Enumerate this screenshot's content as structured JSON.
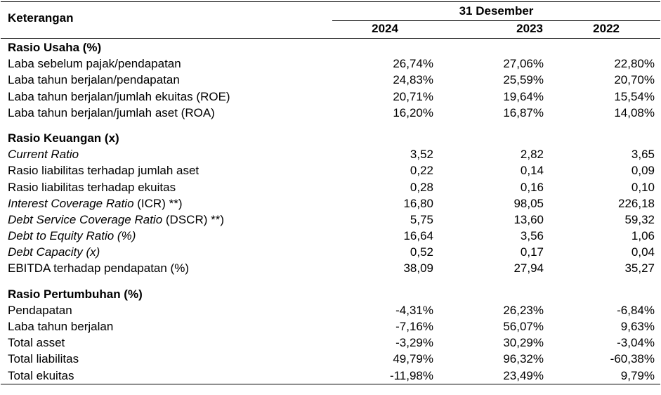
{
  "header": {
    "label": "Keterangan",
    "group": "31 Desember",
    "years": [
      "2024",
      "2023",
      "2022"
    ]
  },
  "sections": [
    {
      "title": "Rasio Usaha (%)",
      "rows": [
        {
          "label": "Laba sebelum pajak/pendapatan",
          "italic": "",
          "values": [
            "26,74%",
            "27,06%",
            "22,80%"
          ]
        },
        {
          "label": "Laba tahun berjalan/pendapatan",
          "italic": "",
          "values": [
            "24,83%",
            "25,59%",
            "20,70%"
          ]
        },
        {
          "label": "Laba tahun berjalan/jumlah ekuitas (ROE)",
          "italic": "",
          "values": [
            "20,71%",
            "19,64%",
            "15,54%"
          ]
        },
        {
          "label": "Laba tahun berjalan/jumlah aset (ROA)",
          "italic": "",
          "values": [
            "16,20%",
            "16,87%",
            "14,08%"
          ]
        }
      ]
    },
    {
      "title": "Rasio Keuangan (x)",
      "rows": [
        {
          "label": "",
          "italic": "Current Ratio",
          "values": [
            "3,52",
            "2,82",
            "3,65"
          ]
        },
        {
          "label": "Rasio liabilitas terhadap jumlah aset",
          "italic": "",
          "values": [
            "0,22",
            "0,14",
            "0,09"
          ]
        },
        {
          "label": "Rasio liabilitas terhadap ekuitas",
          "italic": "",
          "values": [
            "0,28",
            "0,16",
            "0,10"
          ]
        },
        {
          "label": " (ICR) **)",
          "italic": "Interest Coverage Ratio",
          "values": [
            "16,80",
            "98,05",
            "226,18"
          ]
        },
        {
          "label": " (DSCR) **)",
          "italic": "Debt Service Coverage Ratio",
          "values": [
            "5,75",
            "13,60",
            "59,32"
          ]
        },
        {
          "label": "",
          "italic": "Debt to Equity Ratio (%)",
          "values": [
            "16,64",
            "3,56",
            "1,06"
          ]
        },
        {
          "label": "",
          "italic": "Debt Capacity (x)",
          "values": [
            "0,52",
            "0,17",
            "0,04"
          ]
        },
        {
          "label": "EBITDA terhadap pendapatan (%)",
          "italic": "",
          "values": [
            "38,09",
            "27,94",
            "35,27"
          ]
        }
      ]
    },
    {
      "title": "Rasio Pertumbuhan (%)",
      "rows": [
        {
          "label": "Pendapatan",
          "italic": "",
          "values": [
            "-4,31%",
            "26,23%",
            "-6,84%"
          ]
        },
        {
          "label": "Laba tahun berjalan",
          "italic": "",
          "values": [
            "-7,16%",
            "56,07%",
            "9,63%"
          ]
        },
        {
          "label": "Total asset",
          "italic": "",
          "values": [
            "-3,29%",
            "30,29%",
            "-3,04%"
          ]
        },
        {
          "label": "Total liabilitas",
          "italic": "",
          "values": [
            "49,79%",
            "96,32%",
            "-60,38%"
          ]
        },
        {
          "label": "Total ekuitas",
          "italic": "",
          "values": [
            "-11,98%",
            "23,49%",
            "9,79%"
          ]
        }
      ]
    }
  ]
}
